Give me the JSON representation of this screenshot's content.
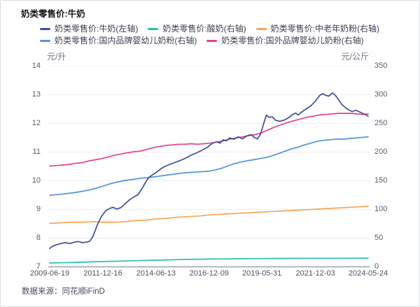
{
  "header": {
    "title": "奶类零售价:牛奶"
  },
  "footer": {
    "source": "数据来源：同花顺iFinD"
  },
  "chart_data": {
    "type": "line",
    "title": "奶类零售价:牛奶",
    "grid": "horizontal",
    "legend_position": "top",
    "x_range": [
      2009.47,
      2024.39
    ],
    "x_tick_labels": [
      {
        "label": "2009-06-19",
        "x": 2009.47
      },
      {
        "label": "2011-12-16",
        "x": 2011.96
      },
      {
        "label": "2014-06-13",
        "x": 2014.45
      },
      {
        "label": "2016-12-09",
        "x": 2016.94
      },
      {
        "label": "2019-05-31",
        "x": 2019.41
      },
      {
        "label": "2021-12-03",
        "x": 2021.92
      },
      {
        "label": "2024-05-24",
        "x": 2024.39
      }
    ],
    "left_axis": {
      "unit": "元/升",
      "min": 7,
      "max": 14,
      "ticks": [
        7,
        8,
        9,
        10,
        11,
        12,
        13,
        14
      ]
    },
    "right_axis": {
      "unit": "元/公斤",
      "min": 0,
      "max": 350,
      "ticks": [
        0,
        50,
        100,
        150,
        200,
        250,
        300,
        350
      ]
    },
    "legend_rows": [
      [
        "milk",
        "yogurt",
        "senior_powder"
      ],
      [
        "domestic_infant",
        "foreign_infant"
      ]
    ],
    "series": [
      {
        "id": "yogurt",
        "label": "奶类零售价:酸奶(右轴)",
        "axis": "right",
        "color": "#29bfad",
        "points": [
          [
            2009.47,
            6.0
          ],
          [
            2010.0,
            6.5
          ],
          [
            2010.5,
            7.0
          ],
          [
            2011.0,
            7.5
          ],
          [
            2011.5,
            8.0
          ],
          [
            2012.0,
            8.5
          ],
          [
            2012.5,
            9.0
          ],
          [
            2013.0,
            9.5
          ],
          [
            2013.5,
            10.0
          ],
          [
            2014.0,
            10.5
          ],
          [
            2014.5,
            11.0
          ],
          [
            2015.0,
            11.5
          ],
          [
            2015.5,
            12.0
          ],
          [
            2016.0,
            12.3
          ],
          [
            2016.5,
            12.6
          ],
          [
            2017.0,
            12.9
          ],
          [
            2017.5,
            13.1
          ],
          [
            2018.0,
            13.3
          ],
          [
            2018.5,
            13.5
          ],
          [
            2019.0,
            13.6
          ],
          [
            2019.5,
            13.8
          ],
          [
            2020.0,
            13.9
          ],
          [
            2020.5,
            14.0
          ],
          [
            2021.0,
            14.1
          ],
          [
            2021.5,
            14.1
          ],
          [
            2022.0,
            14.2
          ],
          [
            2022.5,
            14.2
          ],
          [
            2023.0,
            14.3
          ],
          [
            2023.5,
            14.3
          ],
          [
            2024.0,
            14.4
          ],
          [
            2024.39,
            14.5
          ]
        ]
      },
      {
        "id": "senior_powder",
        "label": "奶类零售价:中老年奶粉(右轴)",
        "axis": "right",
        "color": "#f7a456",
        "points": [
          [
            2009.47,
            75
          ],
          [
            2010.0,
            76
          ],
          [
            2010.5,
            77
          ],
          [
            2011.0,
            77
          ],
          [
            2011.5,
            78
          ],
          [
            2012.0,
            77
          ],
          [
            2012.5,
            77
          ],
          [
            2013.0,
            78
          ],
          [
            2013.5,
            80
          ],
          [
            2014.0,
            81
          ],
          [
            2014.5,
            83
          ],
          [
            2015.0,
            84
          ],
          [
            2015.5,
            86
          ],
          [
            2016.0,
            87
          ],
          [
            2016.5,
            88
          ],
          [
            2017.0,
            90
          ],
          [
            2017.5,
            91
          ],
          [
            2018.0,
            92
          ],
          [
            2018.5,
            93
          ],
          [
            2019.0,
            94
          ],
          [
            2019.5,
            95
          ],
          [
            2020.0,
            96
          ],
          [
            2020.5,
            97
          ],
          [
            2021.0,
            98
          ],
          [
            2021.5,
            99
          ],
          [
            2022.0,
            100
          ],
          [
            2022.5,
            101
          ],
          [
            2023.0,
            102
          ],
          [
            2023.5,
            103
          ],
          [
            2024.0,
            104
          ],
          [
            2024.39,
            105
          ]
        ]
      },
      {
        "id": "domestic_infant",
        "label": "奶类零售价:国内品牌婴幼儿奶粉(右轴)",
        "axis": "right",
        "color": "#4e94db",
        "points": [
          [
            2009.47,
            124
          ],
          [
            2010.0,
            126
          ],
          [
            2010.5,
            128
          ],
          [
            2011.0,
            131
          ],
          [
            2011.4,
            134
          ],
          [
            2011.8,
            138
          ],
          [
            2012.2,
            143
          ],
          [
            2012.6,
            147
          ],
          [
            2013.0,
            150
          ],
          [
            2013.4,
            152
          ],
          [
            2013.8,
            154
          ],
          [
            2014.1,
            155
          ],
          [
            2014.5,
            157
          ],
          [
            2014.9,
            159
          ],
          [
            2015.3,
            161
          ],
          [
            2015.7,
            163
          ],
          [
            2016.1,
            164
          ],
          [
            2016.5,
            165
          ],
          [
            2016.9,
            166
          ],
          [
            2017.2,
            168
          ],
          [
            2017.5,
            171
          ],
          [
            2017.8,
            175
          ],
          [
            2018.1,
            179
          ],
          [
            2018.4,
            182
          ],
          [
            2018.7,
            184
          ],
          [
            2019.0,
            186
          ],
          [
            2019.3,
            188
          ],
          [
            2019.6,
            190
          ],
          [
            2019.9,
            193
          ],
          [
            2020.2,
            197
          ],
          [
            2020.5,
            201
          ],
          [
            2020.8,
            205
          ],
          [
            2021.1,
            208
          ],
          [
            2021.4,
            212
          ],
          [
            2021.7,
            215
          ],
          [
            2022.0,
            218
          ],
          [
            2022.3,
            220
          ],
          [
            2022.6,
            221
          ],
          [
            2022.9,
            222
          ],
          [
            2023.2,
            222
          ],
          [
            2023.5,
            223
          ],
          [
            2023.8,
            224
          ],
          [
            2024.1,
            225
          ],
          [
            2024.39,
            226
          ]
        ]
      },
      {
        "id": "foreign_infant",
        "label": "奶类零售价:国外品牌婴幼儿奶粉(右轴)",
        "axis": "right",
        "color": "#e63f8e",
        "points": [
          [
            2009.47,
            175
          ],
          [
            2009.8,
            176
          ],
          [
            2010.1,
            177
          ],
          [
            2010.4,
            178
          ],
          [
            2010.7,
            180
          ],
          [
            2011.0,
            181
          ],
          [
            2011.3,
            184
          ],
          [
            2011.6,
            186
          ],
          [
            2011.9,
            188
          ],
          [
            2012.2,
            191
          ],
          [
            2012.5,
            194
          ],
          [
            2012.8,
            196
          ],
          [
            2013.1,
            198
          ],
          [
            2013.4,
            200
          ],
          [
            2013.7,
            201
          ],
          [
            2014.0,
            204
          ],
          [
            2014.3,
            207
          ],
          [
            2014.6,
            209
          ],
          [
            2014.9,
            211
          ],
          [
            2015.2,
            212
          ],
          [
            2015.5,
            213
          ],
          [
            2015.8,
            213
          ],
          [
            2016.1,
            214
          ],
          [
            2016.4,
            213
          ],
          [
            2016.7,
            214
          ],
          [
            2017.0,
            215
          ],
          [
            2017.3,
            217
          ],
          [
            2017.6,
            219
          ],
          [
            2017.9,
            222
          ],
          [
            2018.2,
            224
          ],
          [
            2018.5,
            226
          ],
          [
            2018.8,
            228
          ],
          [
            2019.1,
            230
          ],
          [
            2019.4,
            233
          ],
          [
            2019.7,
            238
          ],
          [
            2020.0,
            243
          ],
          [
            2020.3,
            247
          ],
          [
            2020.6,
            251
          ],
          [
            2020.9,
            254
          ],
          [
            2021.2,
            257
          ],
          [
            2021.5,
            260
          ],
          [
            2021.8,
            262
          ],
          [
            2022.1,
            264
          ],
          [
            2022.4,
            265
          ],
          [
            2022.7,
            266
          ],
          [
            2023.0,
            267
          ],
          [
            2023.3,
            267
          ],
          [
            2023.6,
            267
          ],
          [
            2023.9,
            266
          ],
          [
            2024.1,
            265
          ],
          [
            2024.39,
            266
          ]
        ]
      },
      {
        "id": "milk",
        "label": "奶类零售价:牛奶(左轴)",
        "axis": "left",
        "color": "#3c4e9e",
        "points": [
          [
            2009.47,
            7.63
          ],
          [
            2009.6,
            7.7
          ],
          [
            2009.8,
            7.76
          ],
          [
            2010.0,
            7.8
          ],
          [
            2010.2,
            7.83
          ],
          [
            2010.4,
            7.8
          ],
          [
            2010.6,
            7.84
          ],
          [
            2010.8,
            7.87
          ],
          [
            2011.0,
            7.83
          ],
          [
            2011.2,
            7.85
          ],
          [
            2011.35,
            7.88
          ],
          [
            2011.5,
            8.05
          ],
          [
            2011.7,
            8.45
          ],
          [
            2011.9,
            8.75
          ],
          [
            2012.1,
            8.95
          ],
          [
            2012.3,
            9.03
          ],
          [
            2012.45,
            9.06
          ],
          [
            2012.6,
            9.0
          ],
          [
            2012.8,
            9.05
          ],
          [
            2013.0,
            9.18
          ],
          [
            2013.2,
            9.32
          ],
          [
            2013.4,
            9.42
          ],
          [
            2013.6,
            9.5
          ],
          [
            2013.8,
            9.72
          ],
          [
            2013.95,
            9.92
          ],
          [
            2014.1,
            10.1
          ],
          [
            2014.3,
            10.2
          ],
          [
            2014.5,
            10.3
          ],
          [
            2014.7,
            10.42
          ],
          [
            2014.9,
            10.5
          ],
          [
            2015.1,
            10.56
          ],
          [
            2015.35,
            10.63
          ],
          [
            2015.6,
            10.7
          ],
          [
            2015.85,
            10.78
          ],
          [
            2016.1,
            10.88
          ],
          [
            2016.35,
            10.96
          ],
          [
            2016.6,
            11.05
          ],
          [
            2016.85,
            11.15
          ],
          [
            2017.1,
            11.3
          ],
          [
            2017.3,
            11.35
          ],
          [
            2017.45,
            11.3
          ],
          [
            2017.6,
            11.42
          ],
          [
            2017.75,
            11.38
          ],
          [
            2017.9,
            11.48
          ],
          [
            2018.1,
            11.44
          ],
          [
            2018.3,
            11.52
          ],
          [
            2018.5,
            11.45
          ],
          [
            2018.7,
            11.55
          ],
          [
            2018.9,
            11.6
          ],
          [
            2019.05,
            11.5
          ],
          [
            2019.2,
            11.45
          ],
          [
            2019.35,
            11.62
          ],
          [
            2019.5,
            12.0
          ],
          [
            2019.62,
            12.28
          ],
          [
            2019.75,
            12.2
          ],
          [
            2019.9,
            12.22
          ],
          [
            2020.05,
            12.1
          ],
          [
            2020.25,
            12.06
          ],
          [
            2020.45,
            12.1
          ],
          [
            2020.65,
            12.18
          ],
          [
            2020.85,
            12.3
          ],
          [
            2021.0,
            12.35
          ],
          [
            2021.1,
            12.28
          ],
          [
            2021.3,
            12.4
          ],
          [
            2021.5,
            12.5
          ],
          [
            2021.7,
            12.6
          ],
          [
            2021.9,
            12.75
          ],
          [
            2022.1,
            12.95
          ],
          [
            2022.25,
            13.03
          ],
          [
            2022.4,
            12.97
          ],
          [
            2022.55,
            12.94
          ],
          [
            2022.7,
            13.05
          ],
          [
            2022.85,
            12.97
          ],
          [
            2023.0,
            12.82
          ],
          [
            2023.15,
            12.65
          ],
          [
            2023.3,
            12.55
          ],
          [
            2023.5,
            12.45
          ],
          [
            2023.65,
            12.4
          ],
          [
            2023.8,
            12.45
          ],
          [
            2023.95,
            12.4
          ],
          [
            2024.1,
            12.35
          ],
          [
            2024.25,
            12.3
          ],
          [
            2024.39,
            12.24
          ]
        ]
      }
    ],
    "style": {
      "gridline_color": "#eceef5",
      "axis_line_color": "#aeb4c0",
      "tick_label_color": "#555c69",
      "series_colors": {
        "milk": "#3c4e9e",
        "yogurt": "#29bfad",
        "senior_powder": "#f7a456",
        "domestic_infant": "#4e94db",
        "foreign_infant": "#e63f8e"
      }
    }
  }
}
